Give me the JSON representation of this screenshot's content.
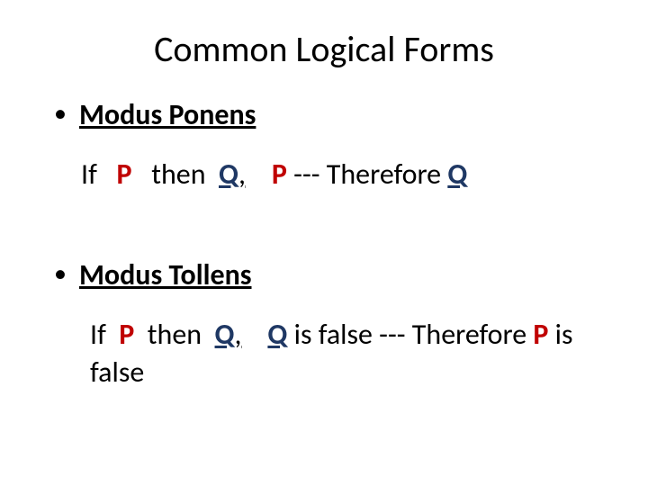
{
  "background_color": "#ffffff",
  "text_color": "#000000",
  "p_color": "#c00000",
  "q_color": "#1f3864",
  "font_family": "Calibri",
  "title": {
    "text": "Common Logical Forms",
    "fontsize": 40,
    "weight": 400,
    "align": "center"
  },
  "items": [
    {
      "bullet": "•",
      "heading": "Modus Ponens",
      "heading_fontsize": 32,
      "heading_weight": 700,
      "heading_underline": true,
      "rule": {
        "if": "If",
        "p1": "P",
        "then": "then",
        "q1": "Q",
        "comma": ",",
        "sep_space": "   ",
        "p2": "P",
        "dashes": " --- ",
        "therefore": "Therefore ",
        "q2": "Q"
      }
    },
    {
      "bullet": "•",
      "heading": "Modus Tollens",
      "heading_fontsize": 32,
      "heading_weight": 700,
      "heading_underline": true,
      "rule": {
        "if": "If",
        "p1": "P",
        "then": "then",
        "q1": "Q",
        "comma": ",",
        "sep_space": "   ",
        "q2": "Q",
        "is_false_1": " is false",
        "dashes": " --- ",
        "therefore": "Therefore ",
        "p2": "P",
        "is_false_2": " is false"
      }
    }
  ]
}
